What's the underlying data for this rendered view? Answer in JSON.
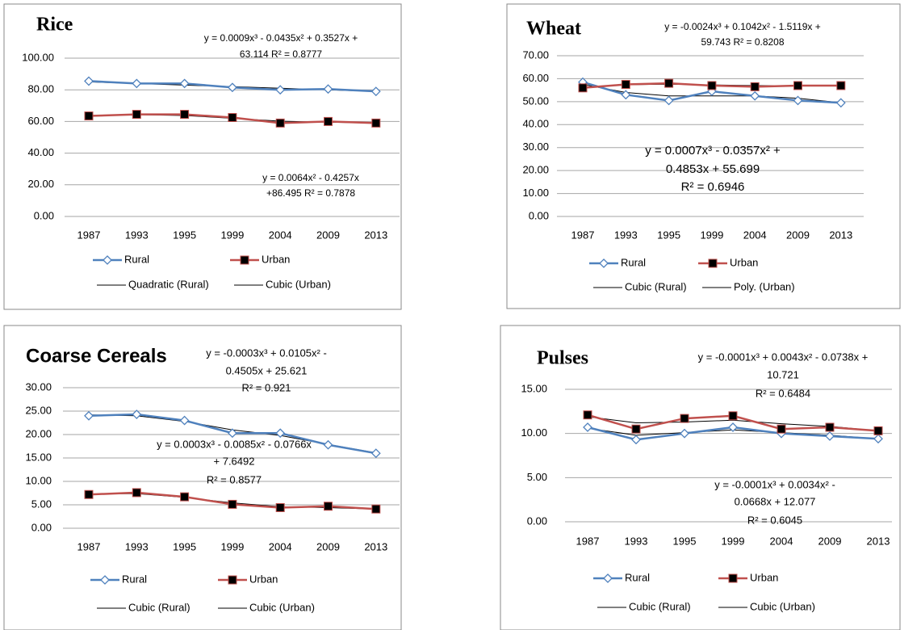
{
  "chart_data": [
    {
      "type": "line",
      "title": "Rice",
      "categories": [
        "1987",
        "1993",
        "1995",
        "1999",
        "2004",
        "2009",
        "2013"
      ],
      "ylim": [
        0,
        100
      ],
      "yticks": [
        {
          "value": 0,
          "label": "0.00"
        },
        {
          "value": 20,
          "label": "20.00"
        },
        {
          "value": 40,
          "label": "40.00"
        },
        {
          "value": 60,
          "label": "60.00"
        },
        {
          "value": 80,
          "label": "80.00"
        },
        {
          "value": 100,
          "label": "100.00"
        }
      ],
      "grid": true,
      "series": [
        {
          "name": "Rural",
          "color": "#4f81bd",
          "marker": "diamond",
          "values": [
            85.5,
            84,
            84,
            81.5,
            80,
            80.5,
            79
          ]
        },
        {
          "name": "Urban",
          "color": "#c0504d",
          "marker": "square",
          "values": [
            63.5,
            64.5,
            64.5,
            62.5,
            59,
            60,
            59
          ]
        },
        {
          "name": "Quadratic (Rural)",
          "color": "#000000",
          "values": [
            85,
            84,
            83,
            82,
            81,
            80,
            79
          ]
        },
        {
          "name": "Cubic (Urban)",
          "color": "#000000",
          "values": [
            63.5,
            64.3,
            63.8,
            62,
            60.2,
            59.5,
            59.2
          ]
        }
      ],
      "annotations": [
        [
          "y = 0.0009x³ - 0.0435x² + 0.3527x +",
          "63.114     R² = 0.8777"
        ],
        [
          "y = 0.0064x² - 0.4257x",
          "+86.495  R² = 0.7878"
        ]
      ]
    },
    {
      "type": "line",
      "title": "Wheat",
      "categories": [
        "1987",
        "1993",
        "1995",
        "1999",
        "2004",
        "2009",
        "2013"
      ],
      "ylim": [
        0,
        70
      ],
      "yticks": [
        {
          "value": 0,
          "label": "0.00"
        },
        {
          "value": 10,
          "label": "10.00"
        },
        {
          "value": 20,
          "label": "20.00"
        },
        {
          "value": 30,
          "label": "30.00"
        },
        {
          "value": 40,
          "label": "40.00"
        },
        {
          "value": 50,
          "label": "50.00"
        },
        {
          "value": 60,
          "label": "60.00"
        },
        {
          "value": 70,
          "label": "70.00"
        }
      ],
      "grid": true,
      "series": [
        {
          "name": "Rural",
          "color": "#4f81bd",
          "marker": "diamond",
          "values": [
            58.5,
            53,
            50.5,
            54.5,
            52.5,
            50.5,
            49.5
          ]
        },
        {
          "name": "Urban",
          "color": "#c0504d",
          "marker": "square",
          "values": [
            56,
            57.5,
            58,
            57,
            56.5,
            57,
            57
          ]
        },
        {
          "name": "Cubic (Rural)",
          "color": "#000000",
          "values": [
            57.5,
            54,
            52.5,
            52.5,
            52.5,
            51.5,
            49.5
          ]
        },
        {
          "name": "Poly. (Urban)",
          "color": "#000000",
          "values": [
            56.3,
            57.4,
            57.6,
            57.3,
            57,
            56.9,
            57
          ]
        }
      ],
      "annotations": [
        [
          "y = -0.0024x³ + 0.1042x² - 1.5119x +",
          "59.743 R² = 0.8208"
        ],
        [
          "y = 0.0007x³ - 0.0357x² +",
          "0.4853x + 55.699",
          "R² = 0.6946"
        ]
      ]
    },
    {
      "type": "line",
      "title": "Coarse Cereals",
      "categories": [
        "1987",
        "1993",
        "1995",
        "1999",
        "2004",
        "2009",
        "2013"
      ],
      "ylim": [
        0,
        30
      ],
      "yticks": [
        {
          "value": 0,
          "label": "0.00"
        },
        {
          "value": 5,
          "label": "5.00"
        },
        {
          "value": 10,
          "label": "10.00"
        },
        {
          "value": 15,
          "label": "15.00"
        },
        {
          "value": 20,
          "label": "20.00"
        },
        {
          "value": 25,
          "label": "25.00"
        },
        {
          "value": 30,
          "label": "30.00"
        }
      ],
      "grid": true,
      "series": [
        {
          "name": "Rural",
          "color": "#4f81bd",
          "marker": "diamond",
          "values": [
            24,
            24.3,
            23,
            20.3,
            20.3,
            17.8,
            16
          ]
        },
        {
          "name": "Urban",
          "color": "#c0504d",
          "marker": "square",
          "values": [
            7.2,
            7.6,
            6.7,
            5.1,
            4.4,
            4.7,
            4.1
          ]
        },
        {
          "name": "Cubic (Rural)",
          "color": "#000000",
          "values": [
            24.2,
            24,
            22.8,
            21,
            19.8,
            17.9,
            16.1
          ]
        },
        {
          "name": "Cubic (Urban)",
          "color": "#000000",
          "values": [
            7.3,
            7.4,
            6.6,
            5.4,
            4.6,
            4.4,
            4.1
          ]
        }
      ],
      "annotations": [
        [
          "y = -0.0003x³ + 0.0105x² -",
          "0.4505x + 25.621",
          "R² = 0.921"
        ],
        [
          "y = 0.0003x³ - 0.0085x² - 0.0766x",
          "+ 7.6492",
          "R² = 0.8577"
        ]
      ]
    },
    {
      "type": "line",
      "title": "Pulses",
      "categories": [
        "1987",
        "1993",
        "1995",
        "1999",
        "2004",
        "2009",
        "2013"
      ],
      "ylim": [
        0,
        15
      ],
      "yticks": [
        {
          "value": 0,
          "label": "0.00"
        },
        {
          "value": 5,
          "label": "5.00"
        },
        {
          "value": 10,
          "label": "10.00"
        },
        {
          "value": 15,
          "label": "15.00"
        }
      ],
      "grid": true,
      "series": [
        {
          "name": "Rural",
          "color": "#4f81bd",
          "marker": "diamond",
          "values": [
            10.7,
            9.3,
            10,
            10.7,
            10,
            9.7,
            9.4
          ]
        },
        {
          "name": "Urban",
          "color": "#c0504d",
          "marker": "square",
          "values": [
            12.1,
            10.5,
            11.7,
            12,
            10.5,
            10.7,
            10.3
          ]
        },
        {
          "name": "Cubic (Rural)",
          "color": "#000000",
          "values": [
            10.6,
            9.8,
            10.1,
            10.4,
            10.1,
            9.8,
            9.4
          ]
        },
        {
          "name": "Cubic (Urban)",
          "color": "#000000",
          "values": [
            11.9,
            11.2,
            11.3,
            11.5,
            11.1,
            10.8,
            10.3
          ]
        }
      ],
      "annotations": [
        [
          "y = -0.0001x³ + 0.0043x² - 0.0738x +",
          "10.721",
          "R² = 0.6484"
        ],
        [
          "y = -0.0001x³ + 0.0034x² -",
          "0.0668x + 12.077",
          "R² = 0.6045"
        ]
      ]
    }
  ]
}
